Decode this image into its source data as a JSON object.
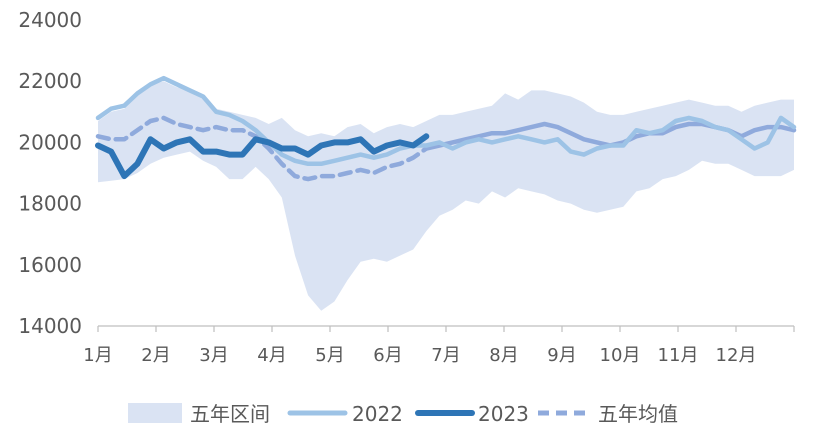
{
  "chart_data": {
    "type": "line",
    "title": "",
    "xlabel": "",
    "ylabel": "",
    "ylim": [
      14000,
      24000
    ],
    "yticks": [
      14000,
      16000,
      18000,
      20000,
      22000,
      24000
    ],
    "ytick_labels": [
      "14000",
      "16000",
      "18000",
      "20000",
      "22000",
      "24000"
    ],
    "x_week_range": [
      0,
      53
    ],
    "month_labels": [
      "1月",
      "2月",
      "3月",
      "4月",
      "5月",
      "6月",
      "7月",
      "8月",
      "9月",
      "10月",
      "11月",
      "12月"
    ],
    "legend": {
      "placement": "bottom",
      "items": [
        "五年区间",
        "2022",
        "2023",
        "五年均值"
      ]
    },
    "colors": {
      "band": "#dae3f3",
      "s2022": "#9dc3e6",
      "s2023": "#2e75b6",
      "avg": "#8faadc",
      "axis": "#bfbfbf",
      "text": "#595959"
    },
    "band": {
      "name": "五年区间",
      "upper": [
        20700,
        21000,
        21100,
        21600,
        21900,
        22000,
        21800,
        21700,
        21500,
        21100,
        21000,
        20900,
        20800,
        20600,
        20800,
        20400,
        20200,
        20300,
        20200,
        20500,
        20600,
        20300,
        20500,
        20600,
        20500,
        20700,
        20900,
        20900,
        21000,
        21100,
        21200,
        21600,
        21400,
        21700,
        21700,
        21600,
        21500,
        21300,
        21000,
        20900,
        20900,
        21000,
        21100,
        21200,
        21300,
        21400,
        21300,
        21200,
        21200,
        21000,
        21200,
        21300,
        21400,
        21400
      ],
      "lower": [
        18700,
        18750,
        18800,
        19000,
        19300,
        19500,
        19600,
        19700,
        19400,
        19200,
        18800,
        18800,
        19200,
        18800,
        18200,
        16300,
        15000,
        14500,
        14800,
        15500,
        16100,
        16200,
        16100,
        16300,
        16500,
        17100,
        17600,
        17800,
        18100,
        18000,
        18400,
        18200,
        18500,
        18400,
        18300,
        18100,
        18000,
        17800,
        17700,
        17800,
        17900,
        18400,
        18500,
        18800,
        18900,
        19100,
        19400,
        19300,
        19300,
        19100,
        18900,
        18900,
        18900,
        19100
      ]
    },
    "series": [
      {
        "name": "2022",
        "x": [
          0,
          1,
          2,
          3,
          4,
          5,
          6,
          7,
          8,
          9,
          10,
          11,
          12,
          13,
          14,
          15,
          16,
          17,
          18,
          19,
          20,
          21,
          22,
          23,
          24,
          25,
          26,
          27,
          28,
          29,
          30,
          31,
          32,
          33,
          34,
          35,
          36,
          37,
          38,
          39,
          40,
          41,
          42,
          43,
          44,
          45,
          46,
          47,
          48,
          49,
          50,
          51,
          52,
          53
        ],
        "values": [
          20800,
          21100,
          21200,
          21600,
          21900,
          22100,
          21900,
          21700,
          21500,
          21000,
          20900,
          20700,
          20400,
          20000,
          19600,
          19400,
          19300,
          19300,
          19400,
          19500,
          19600,
          19500,
          19600,
          19800,
          19900,
          19900,
          20000,
          19800,
          20000,
          20100,
          20000,
          20100,
          20200,
          20100,
          20000,
          20100,
          19700,
          19600,
          19800,
          19900,
          19900,
          20400,
          20300,
          20400,
          20700,
          20800,
          20700,
          20500,
          20400,
          20100,
          19800,
          20000,
          20800,
          20500
        ]
      },
      {
        "name": "2023",
        "x": [
          0,
          1,
          2,
          3,
          4,
          5,
          6,
          7,
          8,
          9,
          10,
          11,
          12,
          13,
          14,
          15,
          16,
          17,
          18,
          19,
          20,
          21,
          22,
          23,
          24,
          25
        ],
        "values": [
          19900,
          19700,
          18900,
          19300,
          20100,
          19800,
          20000,
          20100,
          19700,
          19700,
          19600,
          19600,
          20100,
          20000,
          19800,
          19800,
          19600,
          19900,
          20000,
          20000,
          20100,
          19700,
          19900,
          20000,
          19900,
          20200
        ]
      },
      {
        "name": "五年均值",
        "x": [
          0,
          1,
          2,
          3,
          4,
          5,
          6,
          7,
          8,
          9,
          10,
          11,
          12,
          13,
          14,
          15,
          16,
          17,
          18,
          19,
          20,
          21,
          22,
          23,
          24,
          25,
          26,
          27,
          28,
          29,
          30,
          31,
          32,
          33,
          34,
          35,
          36,
          37,
          38,
          39,
          40,
          41,
          42,
          43,
          44,
          45,
          46,
          47,
          48,
          49,
          50,
          51,
          52,
          53
        ],
        "values": [
          20200,
          20100,
          20100,
          20400,
          20700,
          20800,
          20600,
          20500,
          20400,
          20500,
          20400,
          20400,
          20200,
          19800,
          19300,
          18900,
          18800,
          18900,
          18900,
          19000,
          19100,
          19000,
          19200,
          19300,
          19500,
          19800,
          19900,
          20000,
          20100,
          20200,
          20300,
          20300,
          20400,
          20500,
          20600,
          20500,
          20300,
          20100,
          20000,
          19900,
          20000,
          20200,
          20300,
          20300,
          20500,
          20600,
          20600,
          20500,
          20400,
          20200,
          20400,
          20500,
          20500,
          20400
        ],
        "dashed_from_index": 25
      }
    ]
  }
}
